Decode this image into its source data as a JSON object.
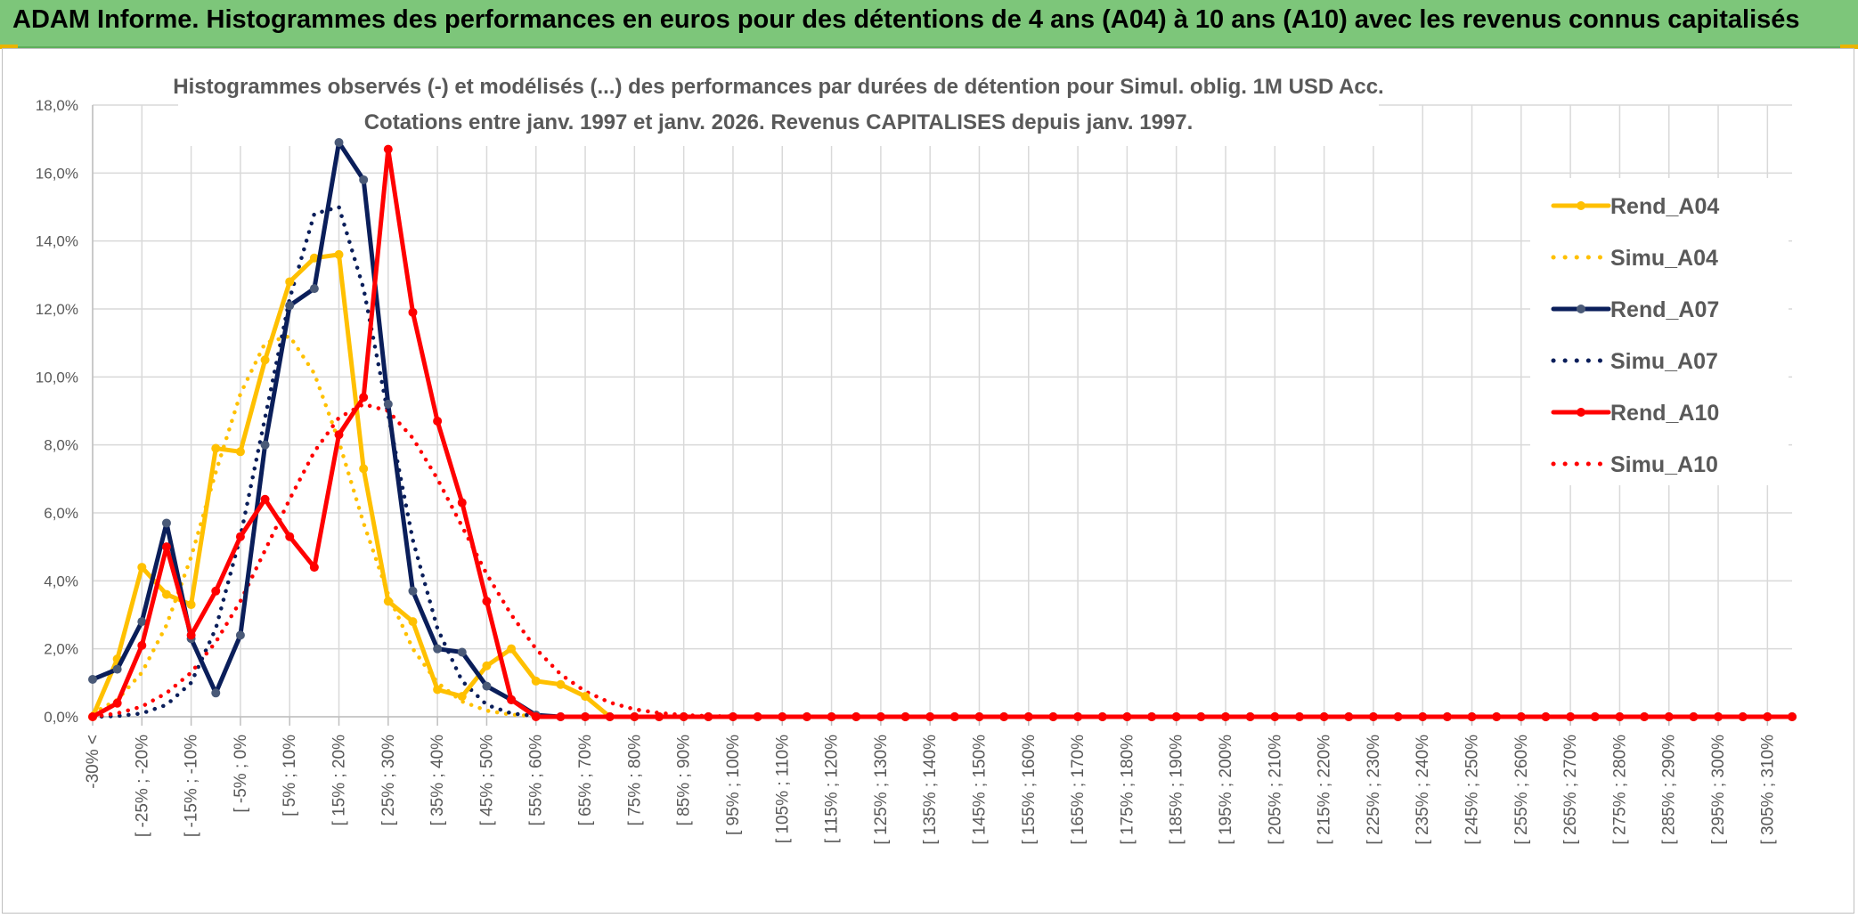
{
  "header": {
    "title": "ADAM Informe. Histogrammes des performances en euros pour des détentions de 4 ans (A04) à 10 ans (A10) avec les revenus connus capitalisés"
  },
  "colors": {
    "banner": "#7dc67a",
    "a04": "#ffc000",
    "a07": "#0a1e5a",
    "a10": "#ff0000",
    "grid": "#d9d9d9",
    "text": "#595959"
  },
  "chart_data": {
    "type": "line",
    "title": "Histogrammes observés (-) et modélisés (...) des performances par durées de détention pour Simul. oblig. 1M USD Acc.",
    "subtitle": "Cotations entre janv. 1997 et janv. 2026. Revenus CAPITALISES depuis janv. 1997.",
    "xlabel": "",
    "ylabel": "",
    "ylim": [
      0,
      18
    ],
    "grid": true,
    "legend_position": "right",
    "y_ticks": [
      "0,0%",
      "2,0%",
      "4,0%",
      "6,0%",
      "8,0%",
      "10,0%",
      "12,0%",
      "14,0%",
      "16,0%",
      "18,0%"
    ],
    "x_tick_labels": [
      "-30% <",
      "[ -25% ; -20%",
      "[ -15% ; -10%",
      "[ -5% ; 0%",
      "[ 5% ; 10%",
      "[ 15% ; 20%",
      "[ 25% ; 30%",
      "[ 35% ; 40%",
      "[ 45% ; 50%",
      "[ 55% ; 60%",
      "[ 65% ; 70%",
      "[ 75% ; 80%",
      "[ 85% ; 90%",
      "[ 95% ; 100%",
      "[ 105% ; 110%",
      "[ 115% ; 120%",
      "[ 125% ; 130%",
      "[ 135% ; 140%",
      "[ 145% ; 150%",
      "[ 155% ; 160%",
      "[ 165% ; 170%",
      "[ 175% ; 180%",
      "[ 185% ; 190%",
      "[ 195% ; 200%",
      "[ 205% ; 210%",
      "[ 215% ; 220%",
      "[ 225% ; 230%",
      "[ 235% ; 240%",
      "[ 245% ; 250%",
      "[ 255% ; 260%",
      "[ 265% ; 270%",
      "[ 275% ; 280%",
      "[ 285% ; 290%",
      "[ 295% ; 300%",
      "[ 305% ; 310%"
    ],
    "n_points": 70,
    "series": [
      {
        "name": "Rend_A04",
        "style": "solid",
        "marker": true,
        "color": "#ffc000",
        "values": [
          0.0,
          1.7,
          4.4,
          3.6,
          3.3,
          7.9,
          7.8,
          10.5,
          12.8,
          13.5,
          13.6,
          7.3,
          3.4,
          2.8,
          0.8,
          0.6,
          1.5,
          2.0,
          1.05,
          0.95,
          0.6,
          0.0,
          0,
          0,
          0,
          0,
          0,
          0,
          0,
          0,
          0,
          0,
          0,
          0,
          0,
          0,
          0,
          0,
          0,
          0,
          0,
          0,
          0,
          0,
          0,
          0,
          0,
          0,
          0,
          0,
          0,
          0,
          0,
          0,
          0,
          0,
          0,
          0,
          0,
          0,
          0,
          0,
          0,
          0,
          0,
          0,
          0,
          0,
          0,
          0
        ]
      },
      {
        "name": "Simu_A04",
        "style": "dotted",
        "marker": false,
        "color": "#ffc000",
        "values": [
          0.1,
          0.5,
          1.3,
          2.7,
          4.7,
          7.2,
          9.5,
          11.0,
          11.2,
          10.1,
          8.1,
          5.7,
          3.6,
          2.0,
          1.0,
          0.45,
          0.18,
          0.06,
          0.02,
          0,
          0,
          0,
          0,
          0,
          0,
          0,
          0,
          0,
          0,
          0,
          0,
          0,
          0,
          0,
          0,
          0,
          0,
          0,
          0,
          0,
          0,
          0,
          0,
          0,
          0,
          0,
          0,
          0,
          0,
          0,
          0,
          0,
          0,
          0,
          0,
          0,
          0,
          0,
          0,
          0,
          0,
          0,
          0,
          0,
          0,
          0,
          0,
          0,
          0,
          0
        ]
      },
      {
        "name": "Rend_A07",
        "style": "solid",
        "marker": true,
        "color": "#0a1e5a",
        "values": [
          1.1,
          1.4,
          2.8,
          5.7,
          2.3,
          0.7,
          2.4,
          8.0,
          12.1,
          12.6,
          16.9,
          15.8,
          9.2,
          3.7,
          2.0,
          1.9,
          0.9,
          0.5,
          0.05,
          0,
          0,
          0,
          0,
          0,
          0,
          0,
          0,
          0,
          0,
          0,
          0,
          0,
          0,
          0,
          0,
          0,
          0,
          0,
          0,
          0,
          0,
          0,
          0,
          0,
          0,
          0,
          0,
          0,
          0,
          0,
          0,
          0,
          0,
          0,
          0,
          0,
          0,
          0,
          0,
          0,
          0,
          0,
          0,
          0,
          0,
          0,
          0,
          0,
          0,
          0
        ]
      },
      {
        "name": "Simu_A07",
        "style": "dotted",
        "marker": false,
        "color": "#0a1e5a",
        "values": [
          0.0,
          0.02,
          0.1,
          0.35,
          1.0,
          2.6,
          5.3,
          8.8,
          12.3,
          14.8,
          15.0,
          12.6,
          8.9,
          5.2,
          2.6,
          1.05,
          0.35,
          0.1,
          0.02,
          0,
          0,
          0,
          0,
          0,
          0,
          0,
          0,
          0,
          0,
          0,
          0,
          0,
          0,
          0,
          0,
          0,
          0,
          0,
          0,
          0,
          0,
          0,
          0,
          0,
          0,
          0,
          0,
          0,
          0,
          0,
          0,
          0,
          0,
          0,
          0,
          0,
          0,
          0,
          0,
          0,
          0,
          0,
          0,
          0,
          0,
          0,
          0,
          0,
          0,
          0
        ]
      },
      {
        "name": "Rend_A10",
        "style": "solid",
        "marker": true,
        "color": "#ff0000",
        "values": [
          0.0,
          0.4,
          2.1,
          5.0,
          2.4,
          3.7,
          5.3,
          6.4,
          5.3,
          4.4,
          8.3,
          9.4,
          16.7,
          11.9,
          8.7,
          6.3,
          3.4,
          0.5,
          0.0,
          0,
          0,
          0,
          0,
          0,
          0,
          0,
          0,
          0,
          0,
          0,
          0,
          0,
          0,
          0,
          0,
          0,
          0,
          0,
          0,
          0,
          0,
          0,
          0,
          0,
          0,
          0,
          0,
          0,
          0,
          0,
          0,
          0,
          0,
          0,
          0,
          0,
          0,
          0,
          0,
          0,
          0,
          0,
          0,
          0,
          0,
          0,
          0,
          0,
          0,
          0
        ]
      },
      {
        "name": "Simu_A10",
        "style": "dotted",
        "marker": false,
        "color": "#ff0000",
        "values": [
          0.0,
          0.1,
          0.3,
          0.7,
          1.3,
          2.2,
          3.4,
          4.9,
          6.4,
          7.8,
          8.8,
          9.2,
          9.0,
          8.2,
          7.0,
          5.6,
          4.2,
          3.0,
          2.0,
          1.25,
          0.75,
          0.42,
          0.22,
          0.11,
          0.05,
          0.02,
          0.01,
          0,
          0,
          0,
          0,
          0,
          0,
          0,
          0,
          0,
          0,
          0,
          0,
          0,
          0,
          0,
          0,
          0,
          0,
          0,
          0,
          0,
          0,
          0,
          0,
          0,
          0,
          0,
          0,
          0,
          0,
          0,
          0,
          0,
          0,
          0,
          0,
          0,
          0,
          0,
          0,
          0,
          0,
          0
        ]
      }
    ]
  }
}
